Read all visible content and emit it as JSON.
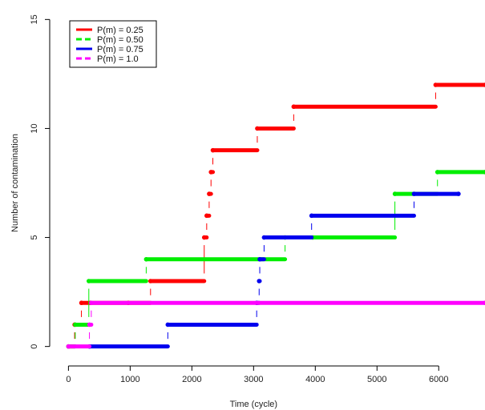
{
  "chart_data": {
    "type": "line",
    "title": "",
    "xlabel": "Time (cycle)",
    "ylabel": "Number of contamination",
    "xlim": [
      -200,
      6750
    ],
    "ylim": [
      -0.6,
      15.6
    ],
    "xticks": [
      0,
      1000,
      2000,
      3000,
      4000,
      5000,
      6000
    ],
    "yticks": [
      0,
      5,
      10,
      15
    ],
    "xtick_labels": [
      "0",
      "1000",
      "2000",
      "3000",
      "4000",
      "5000",
      "6000"
    ],
    "ytick_labels": [
      "0",
      "5",
      "10",
      "15"
    ],
    "grid": false,
    "legend_position": "top-left",
    "series": [
      {
        "name": "P(m) = 0.25",
        "color": "#ff0000",
        "line_style": "solid",
        "steps": [
          [
            0,
            0
          ],
          [
            100,
            1
          ],
          [
            210,
            2
          ],
          [
            360,
            2
          ],
          [
            970,
            2
          ],
          [
            1330,
            3
          ],
          [
            2200,
            5
          ],
          [
            2240,
            6
          ],
          [
            2280,
            7
          ],
          [
            2310,
            8
          ],
          [
            2340,
            9
          ],
          [
            3060,
            10
          ],
          [
            3650,
            11
          ],
          [
            5950,
            12
          ],
          [
            6750,
            12
          ]
        ]
      },
      {
        "name": "P(m) = 0.50",
        "color": "#00ee00",
        "line_style": "dashed",
        "steps": [
          [
            0,
            0
          ],
          [
            110,
            1
          ],
          [
            330,
            3
          ],
          [
            1260,
            4
          ],
          [
            3510,
            5
          ],
          [
            3960,
            5
          ],
          [
            5290,
            7
          ],
          [
            5980,
            8
          ],
          [
            6750,
            8
          ]
        ]
      },
      {
        "name": "P(m) = 0.75",
        "color": "#0000ee",
        "line_style": "solid",
        "steps": [
          [
            340,
            0
          ],
          [
            1610,
            1
          ],
          [
            3050,
            2
          ],
          [
            3090,
            3
          ],
          [
            3100,
            4
          ],
          [
            3170,
            5
          ],
          [
            3940,
            6
          ],
          [
            5600,
            7
          ],
          [
            6320,
            7
          ]
        ]
      },
      {
        "name": "P(m) = 1.0",
        "color": "#ff00ff",
        "line_style": "dashed",
        "steps": [
          [
            0,
            0
          ],
          [
            340,
            1
          ],
          [
            370,
            2
          ],
          [
            6750,
            2
          ]
        ]
      }
    ]
  }
}
